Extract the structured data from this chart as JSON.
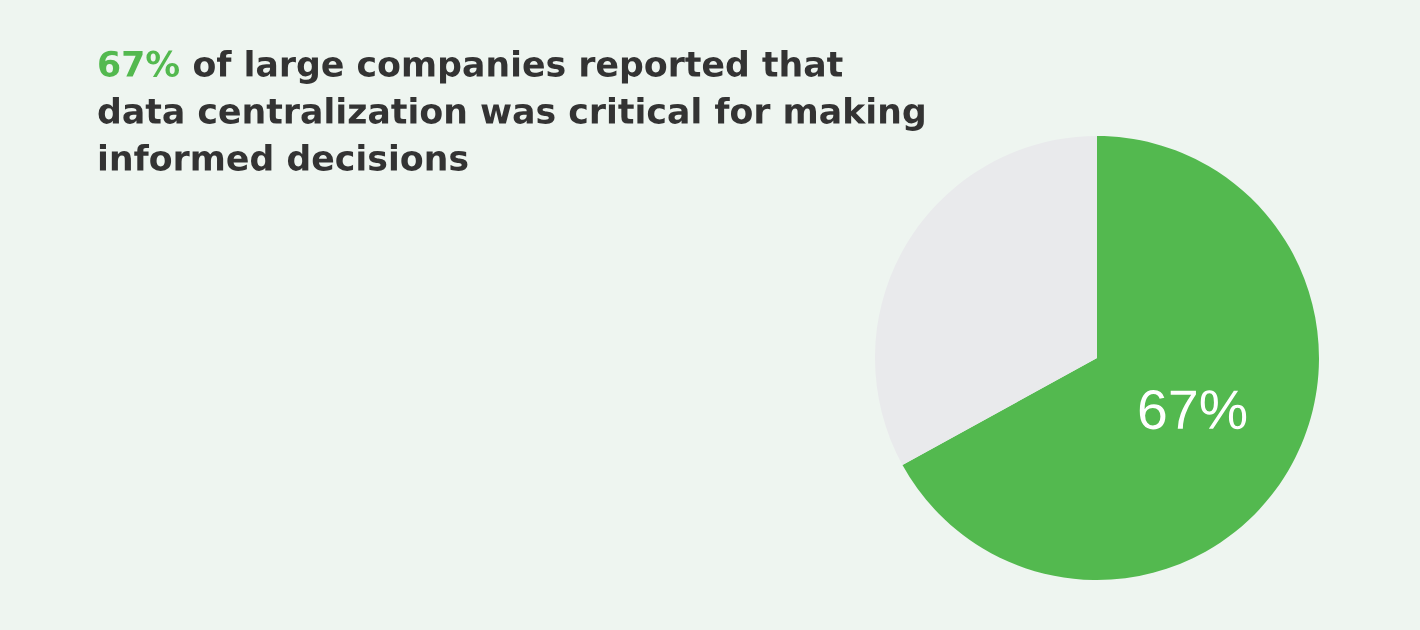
{
  "chart_data": {
    "type": "pie",
    "title": "67% of large companies reported that\ndata centralization was critical for making\ninformed decisions",
    "categories": [
      null,
      null
    ],
    "values": [
      67,
      33
    ],
    "colors": [
      "#53b94f",
      "#e9eaec"
    ],
    "value_labels": [
      "67%",
      null
    ]
  }
}
